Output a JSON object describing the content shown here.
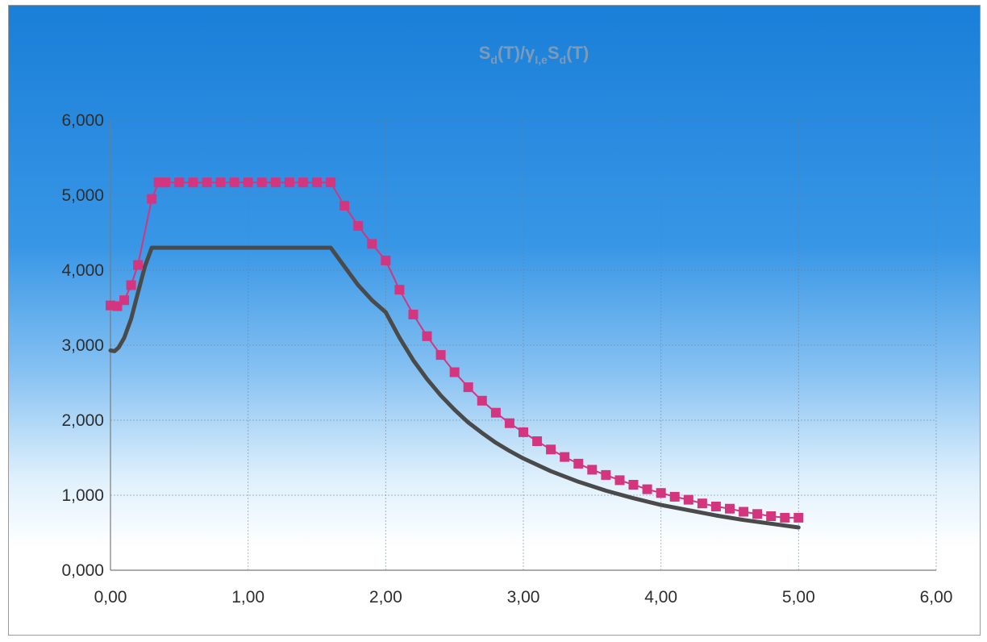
{
  "chart_data": {
    "type": "line",
    "title": {
      "part1": "S",
      "sub1": "d",
      "part2": "(T)/γ",
      "sub2": "I,e",
      "part3": "S",
      "sub3": "d",
      "part4": "(T)"
    },
    "xlabel": "",
    "ylabel": "",
    "xlim": [
      0,
      6
    ],
    "ylim": [
      0,
      6
    ],
    "grid": true,
    "legend": "none",
    "x_ticks": [
      "0,00",
      "1,00",
      "2,00",
      "3,00",
      "4,00",
      "5,00",
      "6,00"
    ],
    "y_ticks": [
      "0,000",
      "1,000",
      "2,000",
      "3,000",
      "4,000",
      "5,000",
      "6,000"
    ],
    "series": [
      {
        "color": "#4a4a4a",
        "marker": "none",
        "x": [
          0.0,
          0.03,
          0.06,
          0.1,
          0.15,
          0.2,
          0.25,
          0.3,
          0.32,
          0.5,
          0.8,
          1.0,
          1.2,
          1.4,
          1.6,
          1.7,
          1.8,
          1.9,
          2.0,
          2.1,
          2.2,
          2.3,
          2.4,
          2.5,
          2.6,
          2.7,
          2.8,
          2.9,
          3.0,
          3.2,
          3.4,
          3.6,
          3.8,
          4.0,
          4.2,
          4.4,
          4.6,
          4.8,
          5.0
        ],
        "values": [
          2.93,
          2.92,
          2.97,
          3.1,
          3.35,
          3.7,
          4.05,
          4.3,
          4.3,
          4.3,
          4.3,
          4.3,
          4.3,
          4.3,
          4.3,
          4.05,
          3.8,
          3.6,
          3.44,
          3.1,
          2.8,
          2.55,
          2.33,
          2.14,
          1.97,
          1.83,
          1.7,
          1.59,
          1.49,
          1.32,
          1.18,
          1.06,
          0.96,
          0.87,
          0.8,
          0.73,
          0.67,
          0.62,
          0.57
        ]
      },
      {
        "color": "#d4357f",
        "marker": "square",
        "x": [
          0.0,
          0.05,
          0.1,
          0.15,
          0.2,
          0.3,
          0.35,
          0.4,
          0.5,
          0.6,
          0.7,
          0.8,
          0.9,
          1.0,
          1.1,
          1.2,
          1.3,
          1.4,
          1.5,
          1.6,
          1.7,
          1.8,
          1.9,
          2.0,
          2.1,
          2.2,
          2.3,
          2.4,
          2.5,
          2.6,
          2.7,
          2.8,
          2.9,
          3.0,
          3.1,
          3.2,
          3.3,
          3.4,
          3.5,
          3.6,
          3.7,
          3.8,
          3.9,
          4.0,
          4.1,
          4.2,
          4.3,
          4.4,
          4.5,
          4.6,
          4.7,
          4.8,
          4.9,
          5.0
        ],
        "values": [
          3.53,
          3.52,
          3.6,
          3.8,
          4.07,
          4.95,
          5.17,
          5.17,
          5.17,
          5.17,
          5.17,
          5.17,
          5.17,
          5.17,
          5.17,
          5.17,
          5.17,
          5.17,
          5.17,
          5.17,
          4.86,
          4.59,
          4.35,
          4.13,
          3.74,
          3.41,
          3.12,
          2.87,
          2.64,
          2.44,
          2.26,
          2.1,
          1.96,
          1.84,
          1.72,
          1.61,
          1.51,
          1.42,
          1.34,
          1.27,
          1.2,
          1.14,
          1.08,
          1.03,
          0.98,
          0.94,
          0.89,
          0.85,
          0.82,
          0.78,
          0.75,
          0.72,
          0.7,
          0.7
        ]
      }
    ]
  }
}
